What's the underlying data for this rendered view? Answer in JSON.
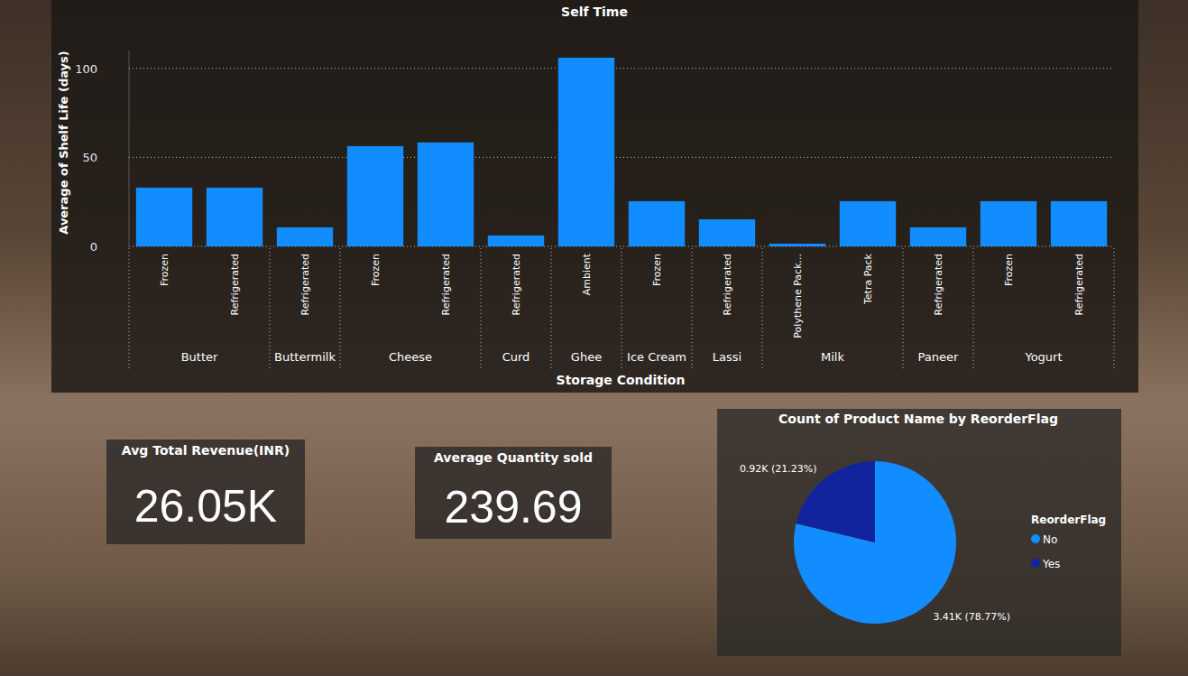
{
  "chart_data": [
    {
      "type": "bar",
      "title": "Self Time",
      "ylabel": "Average of Shelf Life (days)",
      "xlabel": "Storage Condition",
      "categories": [
        "Frozen",
        "Refrigerated",
        "Refrigerated",
        "Frozen",
        "Refrigerated",
        "Refrigerated",
        "Ambient",
        "Frozen",
        "Refrigerated",
        "Polythene Pack...",
        "Tetra Pack",
        "Refrigerated",
        "Frozen",
        "Refrigerated"
      ],
      "category_groups": [
        "Butter",
        "Butter",
        "Buttermilk",
        "Cheese",
        "Cheese",
        "Curd",
        "Ghee",
        "Ice Cream",
        "Lassi",
        "Milk",
        "Milk",
        "Paneer",
        "Yogurt",
        "Yogurt"
      ],
      "values": [
        33,
        33,
        10.7,
        56.3,
        58.4,
        6.1,
        106,
        25.4,
        15.2,
        1.5,
        25.4,
        10.7,
        25.4,
        25.4
      ],
      "color": "#118DFF",
      "ylim": [
        0,
        110
      ],
      "yticks": [
        0,
        50,
        100
      ],
      "grid": true
    },
    {
      "type": "card",
      "title": "Avg Total Revenue(INR)",
      "values": [
        26050
      ],
      "value_labels": [
        "26.05K"
      ]
    },
    {
      "type": "card",
      "title": "Average Quantity sold",
      "values": [
        239.69
      ]
    },
    {
      "type": "pie",
      "title": "Count of Product Name by ReorderFlag",
      "legend_title": "ReorderFlag",
      "categories": [
        "No",
        "Yes"
      ],
      "values": [
        3410,
        920
      ],
      "value_labels": [
        "3.41K (78.77%)",
        "0.92K (21.23%)"
      ],
      "colors": [
        "#118DFF",
        "#12239E"
      ],
      "legend": "right",
      "data_labels": true
    }
  ]
}
